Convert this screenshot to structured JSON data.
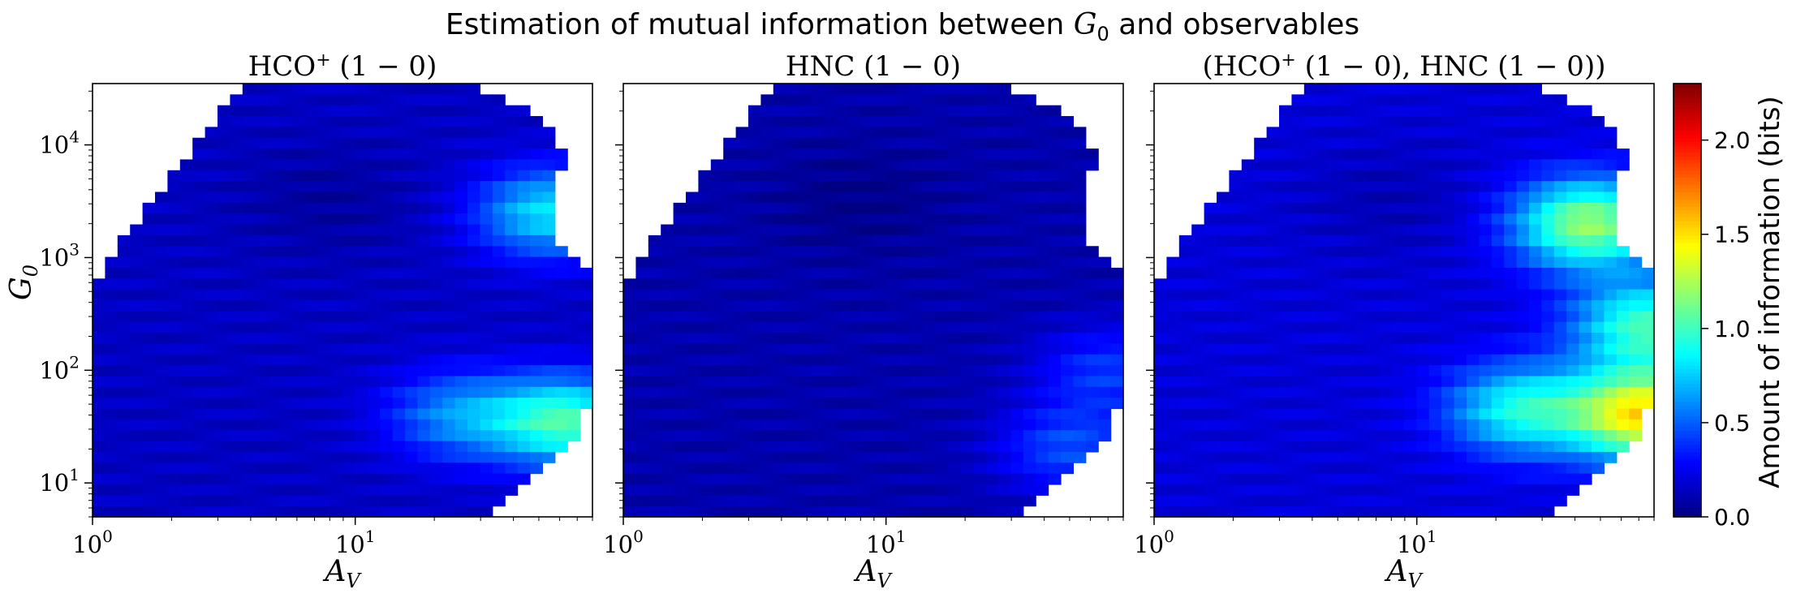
{
  "figure": {
    "title_text": "Estimation of mutual information between ",
    "title_var": "G",
    "title_sub": "0",
    "title_tail": " and observables"
  },
  "colorbar": {
    "label": "Amount of information (bits)",
    "ticks": [
      "0.0",
      "0.5",
      "1.0",
      "1.5",
      "2.0"
    ],
    "colormap": "jet",
    "range": [
      0.0,
      2.3
    ]
  },
  "axes_text": {
    "xlabel_var": "A",
    "xlabel_sub": "V",
    "ylabel_var": "G",
    "ylabel_sub": "0",
    "x_tick_base": "10",
    "x_tick_exps": [
      "0",
      "1"
    ],
    "y_tick_base": "10",
    "y_tick_exps": [
      "1",
      "2",
      "3",
      "4"
    ]
  },
  "panels": [
    {
      "title_main": "HCO",
      "title_sup": "+",
      "title_rest": " (1 − 0)"
    },
    {
      "title_main": "HNC",
      "title_sup": "",
      "title_rest": " (1 − 0)"
    },
    {
      "title_main": "(HCO",
      "title_sup": "+",
      "title_rest": " (1 − 0), HNC (1 − 0))"
    }
  ],
  "chart_data": [
    {
      "type": "heatmap",
      "title": "HCO+ (1 − 0)",
      "xlabel": "A_V",
      "ylabel": "G_0",
      "x_scale": "log",
      "y_scale": "log",
      "xlim": [
        1,
        80
      ],
      "ylim": [
        5,
        35000
      ],
      "colorbar_range": [
        0,
        2.3
      ],
      "hotspots": [
        {
          "Av": 65,
          "G0": 35,
          "value": 1.0
        },
        {
          "Av": 55,
          "G0": 2500,
          "value": 0.8
        },
        {
          "Av": 25,
          "G0": 40,
          "value": 0.6
        }
      ],
      "baseline_value": 0.15
    },
    {
      "type": "heatmap",
      "title": "HNC (1 − 0)",
      "xlabel": "A_V",
      "ylabel": "G_0",
      "x_scale": "log",
      "y_scale": "log",
      "xlim": [
        1,
        80
      ],
      "ylim": [
        5,
        35000
      ],
      "colorbar_range": [
        0,
        2.3
      ],
      "hotspots": [
        {
          "Av": 50,
          "G0": 20,
          "value": 0.45
        },
        {
          "Av": 70,
          "G0": 100,
          "value": 0.4
        }
      ],
      "baseline_value": 0.1
    },
    {
      "type": "heatmap",
      "title": "(HCO+ (1 − 0), HNC (1 − 0))",
      "xlabel": "A_V",
      "ylabel": "G_0",
      "x_scale": "log",
      "y_scale": "log",
      "xlim": [
        1,
        80
      ],
      "ylim": [
        5,
        35000
      ],
      "colorbar_range": [
        0,
        2.3
      ],
      "hotspots": [
        {
          "Av": 75,
          "G0": 40,
          "value": 1.5
        },
        {
          "Av": 45,
          "G0": 2000,
          "value": 1.2
        },
        {
          "Av": 75,
          "G0": 250,
          "value": 1.0
        },
        {
          "Av": 25,
          "G0": 45,
          "value": 0.9
        }
      ],
      "baseline_value": 0.2
    }
  ]
}
